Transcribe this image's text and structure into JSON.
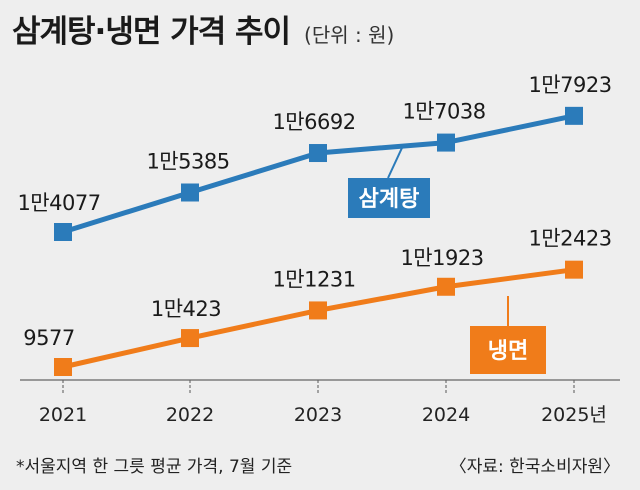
{
  "title": "삼계탕·냉면 가격 추이",
  "unit": "(단위 : 원)",
  "footnote": "*서울지역 한 그릇 평균 가격, 7월 기준",
  "source": "〈자료: 한국소비자원〉",
  "chart_data": {
    "type": "line",
    "title": "삼계탕·냉면 가격 추이",
    "x": [
      2021,
      2022,
      2023,
      2024,
      2025
    ],
    "x_tick_labels": [
      "2021",
      "2022",
      "2023",
      "2024",
      "2025년"
    ],
    "grid": false,
    "legend": "inline labels",
    "series": [
      {
        "name": "삼계탕",
        "color": "#2b7bba",
        "values": [
          14077,
          15385,
          16692,
          17038,
          17923
        ],
        "labels": [
          "1만4077",
          "1만5385",
          "1만6692",
          "1만7038",
          "1만7923"
        ]
      },
      {
        "name": "냉면",
        "color": "#f07c1a",
        "values": [
          9577,
          10423,
          11231,
          11923,
          12423
        ],
        "labels": [
          "9577",
          "1만423",
          "1만1231",
          "1만1923",
          "1만2423"
        ]
      }
    ]
  }
}
